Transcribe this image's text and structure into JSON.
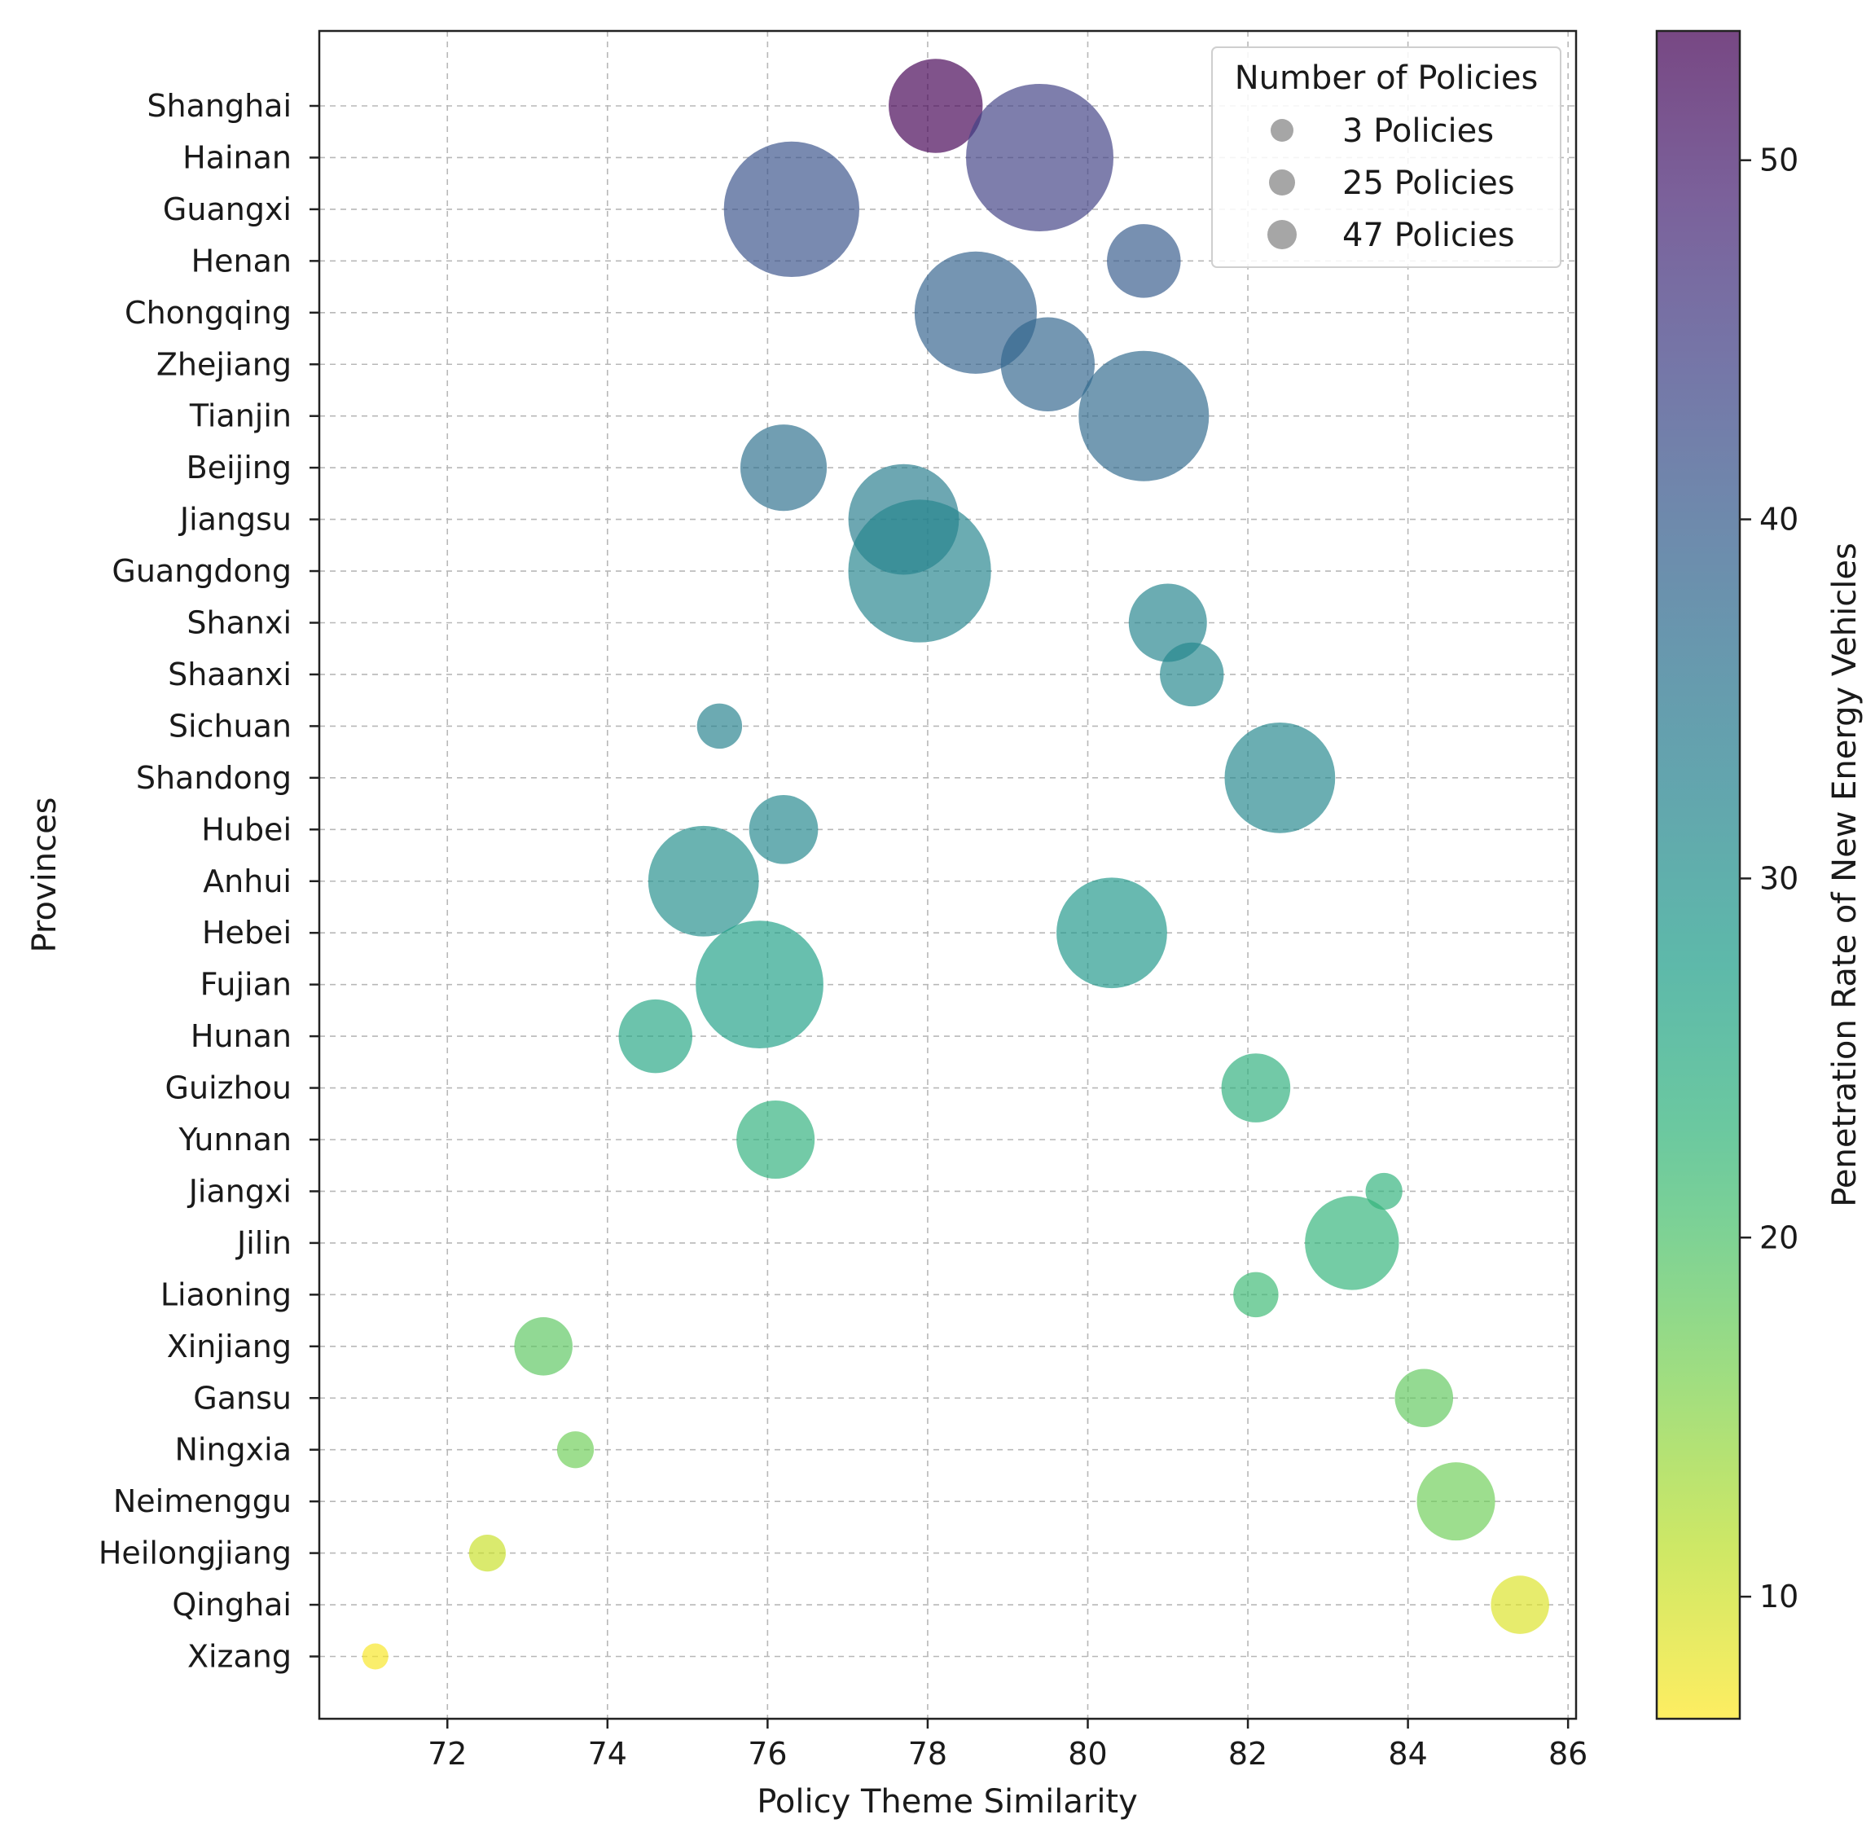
{
  "chart_data": {
    "type": "scatter",
    "xlabel": "Policy Theme Similarity",
    "ylabel": "Provinces",
    "xlim": [
      70.4,
      86.1
    ],
    "xticks": [
      72,
      74,
      76,
      78,
      80,
      82,
      84,
      86
    ],
    "grid": true,
    "colorbar": {
      "label": "Penetration Rate of New Energy Vehicles",
      "range": [
        6.6,
        53.6
      ],
      "ticks": [
        10,
        20,
        30,
        40,
        50
      ],
      "colormap": "viridis_r"
    },
    "legend": {
      "title": "Number of Policies",
      "position": "top-right",
      "entries": [
        {
          "label": "3 Policies",
          "policies": 3
        },
        {
          "label": "25 Policies",
          "policies": 25
        },
        {
          "label": "47 Policies",
          "policies": 47
        }
      ]
    },
    "points": [
      {
        "province": "Shanghai",
        "x": 78.1,
        "policies": 13,
        "penetration": 53.6
      },
      {
        "province": "Hainan",
        "x": 79.4,
        "policies": 32,
        "penetration": 44.5
      },
      {
        "province": "Guangxi",
        "x": 76.3,
        "policies": 27,
        "penetration": 41.5
      },
      {
        "province": "Henan",
        "x": 80.7,
        "policies": 8,
        "penetration": 40.2
      },
      {
        "province": "Chongqing",
        "x": 78.6,
        "policies": 22,
        "penetration": 38.8
      },
      {
        "province": "Zhejiang",
        "x": 79.5,
        "policies": 13,
        "penetration": 38.2
      },
      {
        "province": "Tianjin",
        "x": 80.7,
        "policies": 25,
        "penetration": 37.5
      },
      {
        "province": "Beijing",
        "x": 76.2,
        "policies": 11,
        "penetration": 36.3
      },
      {
        "province": "Jiangsu",
        "x": 77.7,
        "policies": 18,
        "penetration": 33.7
      },
      {
        "province": "Guangdong",
        "x": 77.9,
        "policies": 30,
        "penetration": 32.2
      },
      {
        "province": "Shanxi",
        "x": 81.0,
        "policies": 9,
        "penetration": 32.3
      },
      {
        "province": "Shaanxi",
        "x": 81.3,
        "policies": 6,
        "penetration": 31.8
      },
      {
        "province": "Sichuan",
        "x": 75.4,
        "policies": 3,
        "penetration": 32.7
      },
      {
        "province": "Shandong",
        "x": 82.4,
        "policies": 18,
        "penetration": 31.6
      },
      {
        "province": "Hubei",
        "x": 76.2,
        "policies": 7,
        "penetration": 31.5
      },
      {
        "province": "Anhui",
        "x": 75.2,
        "policies": 18,
        "penetration": 30.2
      },
      {
        "province": "Hebei",
        "x": 80.3,
        "policies": 18,
        "penetration": 28.6
      },
      {
        "province": "Fujian",
        "x": 75.9,
        "policies": 24,
        "penetration": 27.1
      },
      {
        "province": "Hunan",
        "x": 74.6,
        "policies": 8,
        "penetration": 25.8
      },
      {
        "province": "Guizhou",
        "x": 82.1,
        "policies": 7,
        "penetration": 23.8
      },
      {
        "province": "Yunnan",
        "x": 76.1,
        "policies": 9,
        "penetration": 23.5
      },
      {
        "province": "Jiangxi",
        "x": 83.7,
        "policies": 2,
        "penetration": 23.2
      },
      {
        "province": "Jilin",
        "x": 83.3,
        "policies": 13,
        "penetration": 22.9
      },
      {
        "province": "Liaoning",
        "x": 82.1,
        "policies": 3,
        "penetration": 21.5
      },
      {
        "province": "Xinjiang",
        "x": 73.2,
        "policies": 5,
        "penetration": 18.6
      },
      {
        "province": "Gansu",
        "x": 84.2,
        "policies": 5,
        "penetration": 18.2
      },
      {
        "province": "Ningxia",
        "x": 73.6,
        "policies": 2,
        "penetration": 17.0
      },
      {
        "province": "Neimenggu",
        "x": 84.6,
        "policies": 9,
        "penetration": 17.0
      },
      {
        "province": "Heilongjiang",
        "x": 72.5,
        "policies": 2,
        "penetration": 10.4
      },
      {
        "province": "Qinghai",
        "x": 85.4,
        "policies": 5,
        "penetration": 9.0
      },
      {
        "province": "Xizang",
        "x": 71.1,
        "policies": 1,
        "penetration": 7.0
      }
    ]
  }
}
